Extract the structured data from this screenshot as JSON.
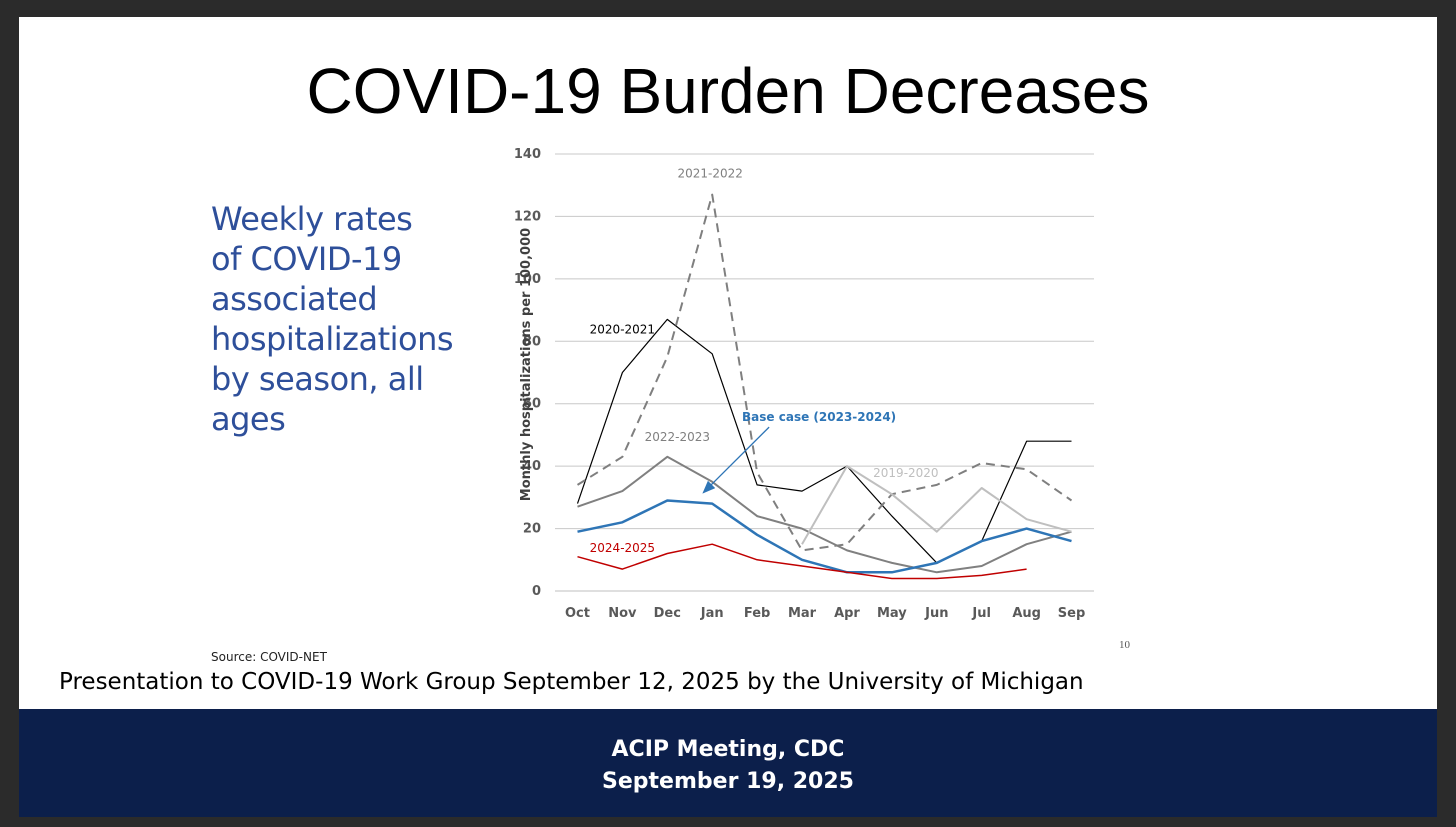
{
  "slide": {
    "title": "COVID-19 Burden Decreases",
    "side_text": "Weekly rates of COVID-19 associated hospitalizations by season, all ages",
    "source": "Source: COVID-NET",
    "presentation_note": "Presentation to COVID-19 Work Group September 12, 2025 by the University of Michigan",
    "page_number": "10"
  },
  "footer": {
    "line1": "ACIP Meeting, CDC",
    "line2": "September 19, 2025"
  },
  "chart_data": {
    "type": "line",
    "title": "",
    "xlabel": "",
    "ylabel": "Monthly hospitalizations per 100,000",
    "ylim": [
      0,
      140
    ],
    "yticks": [
      0,
      20,
      40,
      60,
      80,
      100,
      120,
      140
    ],
    "grid": true,
    "legend": "inline labels",
    "categories": [
      "Oct",
      "Nov",
      "Dec",
      "Jan",
      "Feb",
      "Mar",
      "Apr",
      "May",
      "Jun",
      "Jul",
      "Aug",
      "Sep"
    ],
    "series": [
      {
        "name": "2020-2021",
        "color": "#000000",
        "style": "solid",
        "width": 1.2,
        "values": [
          28,
          70,
          87,
          76,
          34,
          32,
          40,
          24,
          9,
          16,
          48,
          48
        ]
      },
      {
        "name": "2021-2022",
        "color": "#7f7f7f",
        "style": "dashed",
        "width": 2,
        "values": [
          34,
          43,
          75,
          127,
          38,
          13,
          15,
          31,
          34,
          41,
          39,
          29
        ]
      },
      {
        "name": "2022-2023",
        "color": "#808080",
        "style": "solid",
        "width": 2,
        "values": [
          27,
          32,
          43,
          35,
          24,
          20,
          13,
          9,
          6,
          8,
          15,
          19
        ]
      },
      {
        "name": "2019-2020",
        "color": "#bfbfbf",
        "style": "solid",
        "width": 2,
        "values": [
          null,
          null,
          null,
          null,
          null,
          15,
          40,
          31,
          19,
          33,
          23,
          19
        ]
      },
      {
        "name": "Base case (2023-2024)",
        "color": "#2e75b6",
        "style": "solid",
        "width": 2.5,
        "values": [
          19,
          22,
          29,
          28,
          18,
          10,
          6,
          6,
          9,
          16,
          20,
          16
        ]
      },
      {
        "name": "2024-2025",
        "color": "#c00000",
        "style": "solid",
        "width": 1.5,
        "values": [
          11,
          7,
          12,
          15,
          10,
          8,
          6,
          4,
          4,
          5,
          7,
          null
        ]
      }
    ],
    "annotations": [
      {
        "text": "2021-2022",
        "color": "#7f7f7f"
      },
      {
        "text": "2020-2021",
        "color": "#000000"
      },
      {
        "text": "2022-2023",
        "color": "#808080"
      },
      {
        "text": "2019-2020",
        "color": "#bfbfbf"
      },
      {
        "text": "Base case (2023-2024)",
        "color": "#2e75b6"
      },
      {
        "text": "2024-2025",
        "color": "#c00000"
      }
    ]
  }
}
